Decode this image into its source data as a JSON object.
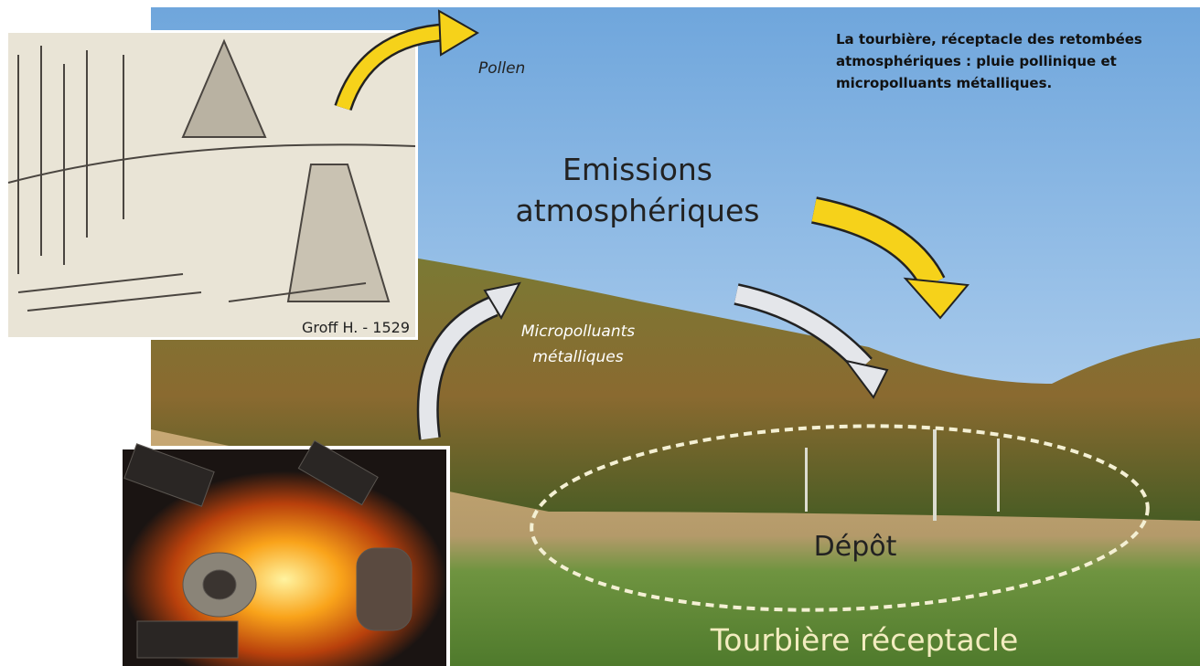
{
  "caption": {
    "lines": [
      "La tourbière, réceptacle des retombées",
      "atmosphériques : pluie pollinique et",
      "micropolluants métalliques."
    ]
  },
  "labels": {
    "pollen": "Pollen",
    "emissions": [
      "Emissions",
      "atmosphériques"
    ],
    "micropolluants": [
      "Micropolluants",
      "métalliques"
    ],
    "credit": "Groff H. - 1529",
    "depot": "Dépôt",
    "tourbiere": "Tourbière réceptacle"
  }
}
